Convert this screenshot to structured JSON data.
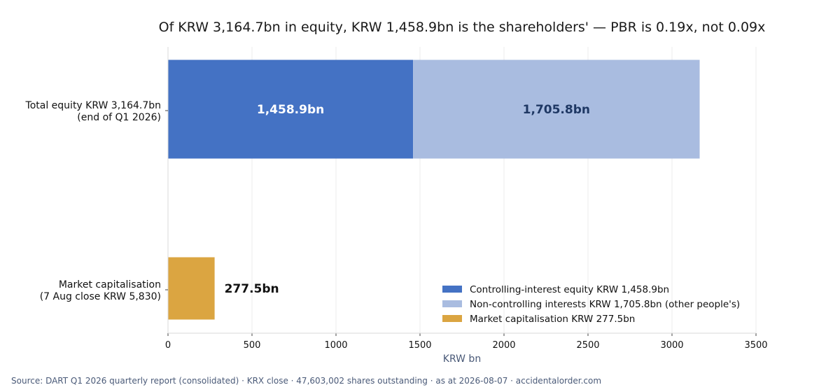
{
  "chart_data": {
    "type": "bar",
    "orientation": "horizontal",
    "stacked": true,
    "title": "Of KRW 3,164.7bn in equity, KRW 1,458.9bn is the shareholders' — PBR is 0.19x, not 0.09x",
    "xlabel": "KRW bn",
    "ylabel": "",
    "xlim": [
      0,
      3500
    ],
    "xticks": [
      0,
      500,
      1000,
      1500,
      2000,
      2500,
      3000,
      3500
    ],
    "grid": "vertical",
    "legend_position": "bottom-right",
    "categories": [
      [
        "Total equity KRW 3,164.7bn",
        "(end of Q1 2026)"
      ],
      [
        "Market capitalisation",
        "(7 Aug close KRW 5,830)"
      ]
    ],
    "series": [
      {
        "name": "Controlling-interest equity KRW 1,458.9bn",
        "color": "#4472c4",
        "values": [
          1458.9,
          null
        ],
        "labels": [
          "1,458.9bn",
          null
        ],
        "label_color": "#ffffff",
        "label_position": "center"
      },
      {
        "name": "Non-controlling interests KRW 1,705.8bn (other people's)",
        "color": "#a9bce0",
        "values": [
          1705.8,
          null
        ],
        "labels": [
          "1,705.8bn",
          null
        ],
        "label_color": "#1f3864",
        "label_position": "center"
      },
      {
        "name": "Market capitalisation KRW 277.5bn",
        "color": "#dba541",
        "values": [
          null,
          277.5
        ],
        "labels": [
          null,
          "277.5bn"
        ],
        "label_color": "#111111",
        "label_position": "outside"
      }
    ]
  },
  "footer": {
    "source": "Source: DART Q1 2026 quarterly report (consolidated) · KRX close · 47,603,002 shares outstanding · as at 2026-08-07 · accidentalorder.com"
  }
}
